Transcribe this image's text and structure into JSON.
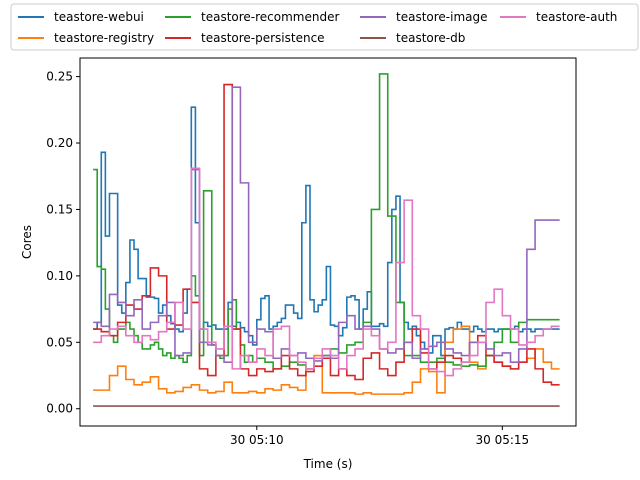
{
  "chart_data": {
    "type": "line",
    "title": "",
    "xlabel": "Time (s)",
    "ylabel": "Cores",
    "x_tick_labels": [
      "30 05:10",
      "30 05:15"
    ],
    "y_ticks": [
      0.0,
      0.05,
      0.1,
      0.15,
      0.2,
      0.25
    ],
    "y_tick_labels": [
      "0.00",
      "0.05",
      "0.10",
      "0.15",
      "0.20",
      "0.25"
    ],
    "xlim_seconds_from_tick_1": [
      -216,
      390
    ],
    "ylim": [
      -0.013,
      0.264
    ],
    "legend_position": "top, above plot (4 columns)",
    "grid": false,
    "series": [
      {
        "name": "teastore-webui",
        "color": "#1f77b4",
        "x": [
          -200,
          -195,
          -190,
          -185,
          -180,
          -175,
          -170,
          -165,
          -160,
          -155,
          -150,
          -145,
          -140,
          -135,
          -130,
          -125,
          -120,
          -115,
          -110,
          -105,
          -100,
          -95,
          -90,
          -85,
          -80,
          -75,
          -70,
          -65,
          -60,
          -55,
          -50,
          -45,
          -40,
          -35,
          -30,
          -25,
          -20,
          -15,
          -10,
          -5,
          0,
          5,
          10,
          15,
          20,
          25,
          30,
          35,
          40,
          45,
          50,
          55,
          60,
          65,
          70,
          75,
          80,
          85,
          90,
          95,
          100,
          105,
          110,
          115,
          120,
          125,
          130,
          135,
          140,
          145,
          150,
          155,
          160,
          165,
          170,
          175,
          180,
          185,
          190,
          195,
          200,
          205,
          210,
          215,
          220,
          225,
          230,
          235,
          240,
          245,
          250,
          255,
          260,
          265,
          270,
          275,
          280,
          285,
          290,
          295,
          300,
          305,
          310,
          315,
          320,
          325,
          330,
          335,
          340,
          345,
          350,
          355,
          360,
          365,
          370
        ],
        "y": [
          0.06,
          0.065,
          0.193,
          0.13,
          0.162,
          0.162,
          0.078,
          0.072,
          0.095,
          0.127,
          0.12,
          0.098,
          0.098,
          0.084,
          0.084,
          0.083,
          0.072,
          0.078,
          0.07,
          0.064,
          0.06,
          0.058,
          0.072,
          0.09,
          0.227,
          0.14,
          0.06,
          0.065,
          0.062,
          0.063,
          0.06,
          0.06,
          0.06,
          0.08,
          0.062,
          0.065,
          0.061,
          0.058,
          0.055,
          0.048,
          0.067,
          0.083,
          0.085,
          0.06,
          0.062,
          0.065,
          0.068,
          0.078,
          0.078,
          0.072,
          0.068,
          0.14,
          0.168,
          0.082,
          0.073,
          0.078,
          0.082,
          0.107,
          0.063,
          0.062,
          0.055,
          0.061,
          0.084,
          0.085,
          0.082,
          0.06,
          0.075,
          0.088,
          0.062,
          0.062,
          0.064,
          0.062,
          0.11,
          0.15,
          0.16,
          0.08,
          0.065,
          0.06,
          0.062,
          0.055,
          0.05,
          0.045,
          0.042,
          0.055,
          0.055,
          0.04,
          0.06,
          0.061,
          0.06,
          0.065,
          0.06,
          0.06,
          0.058,
          0.062,
          0.06,
          0.058,
          0.06,
          0.06,
          0.058,
          0.06,
          0.06,
          0.06,
          0.06,
          0.062,
          0.058,
          0.06,
          0.06,
          0.058,
          0.06,
          0.06,
          0.06,
          0.06,
          0.06,
          0.06,
          0.06
        ]
      },
      {
        "name": "teastore-registry",
        "color": "#ff7f0e",
        "x": [
          -200,
          -190,
          -180,
          -170,
          -160,
          -150,
          -140,
          -130,
          -120,
          -110,
          -100,
          -90,
          -80,
          -70,
          -60,
          -50,
          -40,
          -30,
          -20,
          -10,
          0,
          10,
          20,
          30,
          40,
          50,
          60,
          70,
          80,
          90,
          100,
          110,
          120,
          130,
          140,
          150,
          160,
          170,
          180,
          190,
          200,
          210,
          220,
          230,
          240,
          250,
          260,
          270,
          280,
          290,
          300,
          310,
          320,
          330,
          340,
          350,
          360,
          370
        ],
        "y": [
          0.014,
          0.014,
          0.025,
          0.032,
          0.022,
          0.018,
          0.02,
          0.024,
          0.015,
          0.012,
          0.013,
          0.016,
          0.018,
          0.014,
          0.012,
          0.013,
          0.02,
          0.012,
          0.012,
          0.013,
          0.012,
          0.015,
          0.014,
          0.018,
          0.016,
          0.014,
          0.03,
          0.04,
          0.012,
          0.012,
          0.012,
          0.012,
          0.011,
          0.012,
          0.011,
          0.011,
          0.011,
          0.011,
          0.012,
          0.02,
          0.03,
          0.028,
          0.012,
          0.05,
          0.06,
          0.062,
          0.035,
          0.03,
          0.04,
          0.035,
          0.032,
          0.03,
          0.035,
          0.038,
          0.045,
          0.035,
          0.03,
          0.03
        ]
      },
      {
        "name": "teastore-recommender",
        "color": "#2ca02c",
        "x": [
          -200,
          -195,
          -190,
          -185,
          -180,
          -175,
          -170,
          -165,
          -160,
          -155,
          -150,
          -145,
          -140,
          -135,
          -130,
          -125,
          -120,
          -115,
          -110,
          -105,
          -100,
          -95,
          -90,
          -85,
          -80,
          -75,
          -70,
          -65,
          -60,
          -55,
          -50,
          -45,
          -40,
          -35,
          -30,
          -25,
          -20,
          -15,
          -10,
          -5,
          0,
          10,
          20,
          30,
          40,
          50,
          60,
          70,
          80,
          90,
          100,
          110,
          120,
          130,
          140,
          150,
          160,
          170,
          180,
          190,
          200,
          210,
          220,
          230,
          240,
          250,
          260,
          270,
          280,
          290,
          300,
          310,
          320,
          330,
          340,
          350,
          360,
          370
        ],
        "y": [
          0.18,
          0.107,
          0.105,
          0.075,
          0.055,
          0.05,
          0.06,
          0.06,
          0.065,
          0.06,
          0.055,
          0.05,
          0.045,
          0.045,
          0.048,
          0.05,
          0.045,
          0.04,
          0.042,
          0.038,
          0.04,
          0.038,
          0.035,
          0.04,
          0.1,
          0.085,
          0.04,
          0.164,
          0.164,
          0.048,
          0.04,
          0.038,
          0.04,
          0.075,
          0.082,
          0.06,
          0.048,
          0.035,
          0.04,
          0.035,
          0.038,
          0.035,
          0.03,
          0.032,
          0.035,
          0.033,
          0.03,
          0.038,
          0.04,
          0.045,
          0.042,
          0.048,
          0.05,
          0.065,
          0.15,
          0.252,
          0.145,
          0.08,
          0.04,
          0.04,
          0.035,
          0.035,
          0.038,
          0.035,
          0.033,
          0.032,
          0.033,
          0.032,
          0.04,
          0.05,
          0.06,
          0.05,
          0.065,
          0.067,
          0.067,
          0.067,
          0.067,
          0.067
        ]
      },
      {
        "name": "teastore-persistence",
        "color": "#d62728",
        "x": [
          -200,
          -190,
          -180,
          -170,
          -160,
          -150,
          -140,
          -130,
          -120,
          -110,
          -100,
          -90,
          -80,
          -70,
          -60,
          -50,
          -40,
          -30,
          -20,
          -10,
          0,
          10,
          20,
          30,
          40,
          50,
          60,
          70,
          80,
          90,
          100,
          110,
          120,
          130,
          140,
          150,
          160,
          170,
          180,
          190,
          200,
          210,
          220,
          230,
          240,
          250,
          260,
          270,
          280,
          290,
          300,
          310,
          320,
          330,
          340,
          350,
          360,
          370
        ],
        "y": [
          0.06,
          0.058,
          0.055,
          0.065,
          0.078,
          0.075,
          0.085,
          0.106,
          0.1,
          0.06,
          0.063,
          0.09,
          0.08,
          0.03,
          0.025,
          0.04,
          0.244,
          0.06,
          0.03,
          0.025,
          0.03,
          0.028,
          0.03,
          0.04,
          0.03,
          0.025,
          0.028,
          0.032,
          0.038,
          0.025,
          0.03,
          0.025,
          0.022,
          0.038,
          0.042,
          0.03,
          0.025,
          0.035,
          0.05,
          0.06,
          0.042,
          0.03,
          0.035,
          0.04,
          0.038,
          0.035,
          0.05,
          0.055,
          0.04,
          0.035,
          0.032,
          0.03,
          0.035,
          0.045,
          0.03,
          0.02,
          0.018,
          0.018
        ]
      },
      {
        "name": "teastore-db",
        "color": "#8c564b",
        "x": [
          -200,
          -100,
          0,
          100,
          200,
          300,
          370
        ],
        "y": [
          0.002,
          0.002,
          0.002,
          0.002,
          0.002,
          0.002,
          0.002
        ]
      },
      {
        "name": "teastore-image",
        "color": "#9467bd",
        "x": [
          -200,
          -190,
          -180,
          -170,
          -160,
          -150,
          -140,
          -130,
          -120,
          -110,
          -100,
          -90,
          -80,
          -70,
          -60,
          -50,
          -40,
          -30,
          -20,
          -10,
          0,
          10,
          20,
          30,
          40,
          50,
          60,
          70,
          80,
          90,
          100,
          110,
          120,
          130,
          140,
          150,
          160,
          170,
          180,
          190,
          200,
          210,
          220,
          230,
          240,
          250,
          260,
          270,
          280,
          290,
          300,
          310,
          320,
          330,
          340,
          350,
          360,
          370
        ],
        "y": [
          0.065,
          0.062,
          0.086,
          0.08,
          0.07,
          0.082,
          0.06,
          0.065,
          0.07,
          0.08,
          0.04,
          0.042,
          0.18,
          0.05,
          0.048,
          0.04,
          0.035,
          0.242,
          0.17,
          0.05,
          0.06,
          0.058,
          0.038,
          0.045,
          0.04,
          0.042,
          0.038,
          0.036,
          0.04,
          0.038,
          0.065,
          0.07,
          0.06,
          0.062,
          0.06,
          0.045,
          0.042,
          0.045,
          0.05,
          0.038,
          0.045,
          0.047,
          0.05,
          0.045,
          0.042,
          0.04,
          0.05,
          0.05,
          0.045,
          0.04,
          0.042,
          0.035,
          0.045,
          0.12,
          0.142,
          0.142,
          0.142,
          0.142
        ]
      },
      {
        "name": "teastore-auth",
        "color": "#e377c2",
        "x": [
          -200,
          -190,
          -180,
          -170,
          -160,
          -150,
          -140,
          -130,
          -120,
          -110,
          -100,
          -90,
          -80,
          -70,
          -60,
          -50,
          -40,
          -30,
          -20,
          -10,
          0,
          10,
          20,
          30,
          40,
          50,
          60,
          70,
          80,
          90,
          100,
          110,
          120,
          130,
          140,
          150,
          160,
          170,
          180,
          190,
          200,
          210,
          220,
          230,
          240,
          250,
          260,
          270,
          280,
          290,
          300,
          310,
          320,
          330,
          340,
          350,
          360,
          370
        ],
        "y": [
          0.05,
          0.055,
          0.06,
          0.062,
          0.055,
          0.05,
          0.055,
          0.052,
          0.058,
          0.065,
          0.08,
          0.06,
          0.181,
          0.06,
          0.05,
          0.045,
          0.062,
          0.03,
          0.04,
          0.035,
          0.045,
          0.04,
          0.06,
          0.062,
          0.04,
          0.035,
          0.03,
          0.038,
          0.045,
          0.04,
          0.03,
          0.04,
          0.045,
          0.06,
          0.055,
          0.045,
          0.05,
          0.11,
          0.157,
          0.07,
          0.06,
          0.03,
          0.028,
          0.025,
          0.03,
          0.035,
          0.04,
          0.05,
          0.08,
          0.09,
          0.07,
          0.06,
          0.048,
          0.05,
          0.055,
          0.06,
          0.062,
          0.062
        ]
      }
    ]
  }
}
